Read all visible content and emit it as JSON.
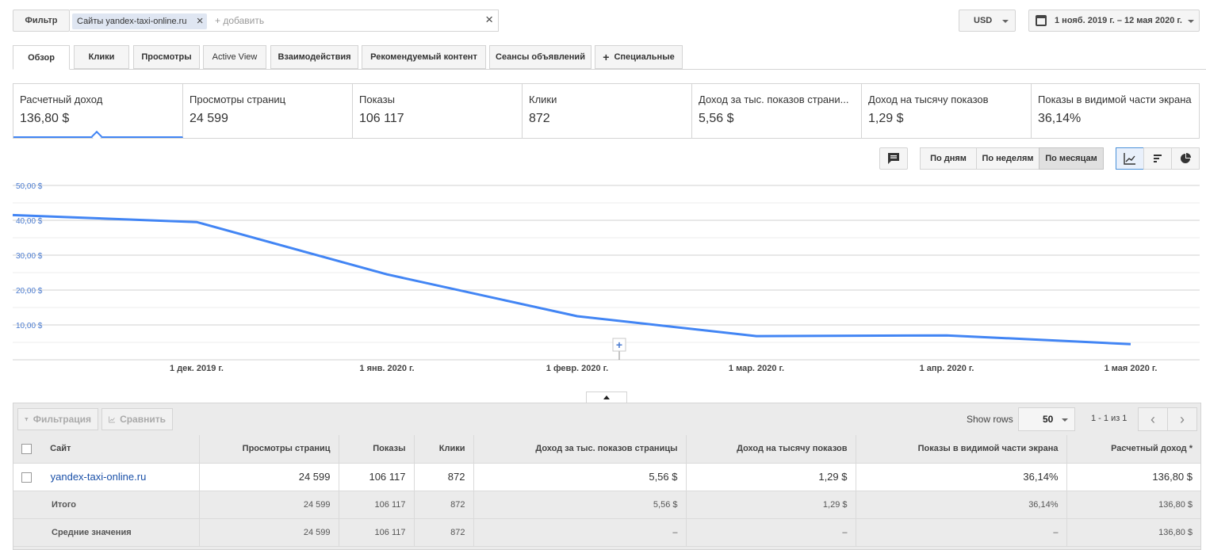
{
  "filter": {
    "button_label": "Фильтр",
    "chip_label": "Сайты yandex-taxi-online.ru",
    "add_placeholder": "+ добавить"
  },
  "currency": "USD",
  "date_range": "1 нояб. 2019 г. – 12 мая 2020 г.",
  "tabs": [
    {
      "label": "Обзор"
    },
    {
      "label": "Клики"
    },
    {
      "label": "Просмотры"
    },
    {
      "label": "Active View"
    },
    {
      "label": "Взаимодействия"
    },
    {
      "label": "Рекомендуемый контент"
    },
    {
      "label": "Сеансы объявлений"
    },
    {
      "label": "Специальные"
    }
  ],
  "metrics": [
    {
      "label": "Расчетный доход",
      "value": "136,80 $"
    },
    {
      "label": "Просмотры страниц",
      "value": "24 599"
    },
    {
      "label": "Показы",
      "value": "106 117"
    },
    {
      "label": "Клики",
      "value": "872"
    },
    {
      "label": "Доход за тыс. показов страни...",
      "value": "5,56 $"
    },
    {
      "label": "Доход на тысячу показов",
      "value": "1,29 $"
    },
    {
      "label": "Показы в видимой части экрана",
      "value": "36,14%"
    }
  ],
  "periods": [
    "По дням",
    "По неделям",
    "По месяцам"
  ],
  "chart_data": {
    "type": "line",
    "line_color": "#4285f4",
    "x": [
      "1 нояб. 2019",
      "1 дек. 2019 г.",
      "1 янв. 2020 г.",
      "1 февр. 2020 г.",
      "1 мар. 2020 г.",
      "1 апр. 2020 г.",
      "1 мая 2020 г."
    ],
    "x_tick_labels": [
      "1 дек. 2019 г.",
      "1 янв. 2020 г.",
      "1 февр. 2020 г.",
      "1 мар. 2020 г.",
      "1 апр. 2020 г.",
      "1 мая 2020 г."
    ],
    "y_tick_labels": [
      "50,00 $",
      "40,00 $",
      "30,00 $",
      "20,00 $",
      "10,00 $"
    ],
    "values": [
      41.5,
      39.5,
      24.5,
      12.5,
      6.8,
      7.0,
      4.5
    ],
    "ylim": [
      0,
      50
    ]
  },
  "table": {
    "toolbar": {
      "filter_label": "Фильтрация",
      "compare_label": "Сравнить"
    },
    "show_rows_label": "Show rows",
    "rows_value": "50",
    "page_info": "1 - 1 из 1",
    "columns": [
      "Сайт",
      "Просмотры страниц",
      "Показы",
      "Клики",
      "Доход за тыс. показов страницы",
      "Доход на тысячу показов",
      "Показы в видимой части экрана",
      "Расчетный доход *"
    ],
    "rows": [
      [
        "yandex-taxi-online.ru",
        "24 599",
        "106 117",
        "872",
        "5,56 $",
        "1,29 $",
        "36,14%",
        "136,80 $"
      ]
    ],
    "total": [
      "Итого",
      "24 599",
      "106 117",
      "872",
      "5,56 $",
      "1,29 $",
      "36,14%",
      "136,80 $"
    ],
    "average": [
      "Средние значения",
      "24 599",
      "106 117",
      "872",
      "–",
      "–",
      "–",
      "136,80 $"
    ]
  }
}
